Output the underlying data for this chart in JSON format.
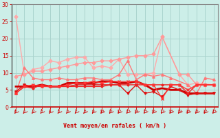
{
  "bg_color": "#cceee8",
  "grid_color": "#aad4ce",
  "xlabel": "Vent moyen/en rafales ( km/h )",
  "xlabel_color": "#cc0000",
  "tick_color": "#cc0000",
  "ylim": [
    0,
    30
  ],
  "yticks": [
    0,
    5,
    10,
    15,
    20,
    25,
    30
  ],
  "lines": [
    {
      "y": [
        26.5,
        9.5,
        11.0,
        11.5,
        13.5,
        13.0,
        14.0,
        14.5,
        14.5,
        11.5,
        12.0,
        11.5,
        14.0,
        9.5,
        9.5,
        9.5,
        10.0,
        20.5,
        9.5,
        6.5,
        7.0,
        6.5
      ],
      "x": [
        0,
        1,
        2,
        3,
        4,
        5,
        6,
        7,
        8,
        9,
        10,
        11,
        12,
        13,
        14,
        15,
        16,
        17,
        19,
        20,
        21,
        23
      ],
      "color": "#ffaaaa",
      "lw": 1.0,
      "marker": "D",
      "ms": 2.5
    },
    {
      "y": [
        9.0,
        9.5,
        10.5,
        10.5,
        11.0,
        11.5,
        12.0,
        12.5,
        13.0,
        13.0,
        13.5,
        13.5,
        14.0,
        14.5,
        15.0,
        15.0,
        15.5,
        20.5,
        9.5,
        9.5,
        6.5,
        6.5,
        6.5
      ],
      "x": [
        0,
        1,
        2,
        3,
        4,
        5,
        6,
        7,
        8,
        9,
        10,
        11,
        12,
        13,
        14,
        15,
        16,
        17,
        19,
        20,
        21,
        22,
        23
      ],
      "color": "#ff9999",
      "lw": 1.0,
      "marker": "D",
      "ms": 2.5
    },
    {
      "y": [
        4.0,
        11.5,
        8.5,
        8.0,
        8.0,
        8.5,
        8.0,
        8.0,
        8.5,
        8.5,
        8.0,
        8.0,
        9.5,
        13.5,
        8.0,
        9.5,
        9.0,
        9.5,
        8.5,
        6.5,
        4.0,
        8.5,
        8.0
      ],
      "x": [
        0,
        1,
        2,
        3,
        4,
        5,
        6,
        7,
        8,
        9,
        10,
        11,
        12,
        13,
        14,
        15,
        16,
        17,
        18,
        20,
        21,
        22,
        23
      ],
      "color": "#ff7777",
      "lw": 1.0,
      "marker": "^",
      "ms": 2.5
    },
    {
      "y": [
        6.0,
        6.0,
        6.0,
        6.5,
        6.0,
        6.0,
        7.0,
        7.0,
        7.0,
        7.0,
        7.5,
        7.5,
        7.0,
        7.0,
        7.5,
        6.5,
        5.0,
        5.5,
        5.0,
        5.0,
        4.0,
        4.0,
        4.0,
        4.0
      ],
      "x": [
        0,
        1,
        2,
        3,
        4,
        5,
        6,
        7,
        8,
        9,
        10,
        11,
        12,
        13,
        14,
        15,
        16,
        17,
        18,
        19,
        20,
        21,
        22,
        23
      ],
      "color": "#cc0000",
      "lw": 2.0,
      "marker": null,
      "ms": 0
    },
    {
      "y": [
        4.5,
        6.5,
        6.0,
        6.0,
        6.0,
        6.0,
        6.0,
        6.5,
        6.5,
        6.5,
        6.5,
        6.5,
        6.5,
        4.0,
        6.5,
        4.0,
        4.5,
        3.0,
        6.0,
        5.0,
        3.5,
        4.0,
        4.0,
        4.0
      ],
      "x": [
        0,
        1,
        2,
        3,
        4,
        5,
        6,
        7,
        8,
        9,
        10,
        11,
        12,
        13,
        14,
        15,
        16,
        17,
        18,
        19,
        20,
        21,
        22,
        23
      ],
      "color": "#dd1111",
      "lw": 1.0,
      "marker": "v",
      "ms": 2.5
    },
    {
      "y": [
        4.0,
        6.0,
        5.5,
        6.5,
        6.0,
        6.0,
        6.0,
        6.0,
        6.0,
        6.0,
        6.0,
        6.5,
        6.5,
        6.5,
        6.5,
        6.5,
        6.5,
        6.5,
        6.5,
        6.5,
        4.0,
        6.5,
        6.5,
        6.5
      ],
      "x": [
        0,
        1,
        2,
        3,
        4,
        5,
        6,
        7,
        8,
        9,
        10,
        11,
        12,
        13,
        14,
        15,
        16,
        17,
        18,
        19,
        20,
        21,
        22,
        23
      ],
      "color": "#ee2222",
      "lw": 1.0,
      "marker": "P",
      "ms": 2.0
    },
    {
      "y": [
        4.0,
        6.0,
        6.5,
        6.0,
        6.0,
        6.0,
        6.5,
        7.0,
        7.0,
        7.5,
        7.0,
        7.5,
        7.5,
        7.5,
        7.5,
        6.5,
        6.5,
        2.5,
        6.5,
        6.5,
        5.0,
        6.5,
        6.5,
        6.5
      ],
      "x": [
        0,
        1,
        2,
        3,
        4,
        5,
        6,
        7,
        8,
        9,
        10,
        11,
        12,
        13,
        14,
        15,
        16,
        17,
        18,
        19,
        20,
        21,
        22,
        23
      ],
      "color": "#ff3333",
      "lw": 1.0,
      "marker": "x",
      "ms": 2.5
    }
  ],
  "wind_arrows_x": [
    0,
    1,
    2,
    3,
    4,
    5,
    6,
    7,
    8,
    9,
    10,
    11,
    12,
    13,
    14,
    15,
    16,
    17,
    18,
    19,
    20,
    21,
    22,
    23
  ],
  "arrow_color": "#cc0000"
}
